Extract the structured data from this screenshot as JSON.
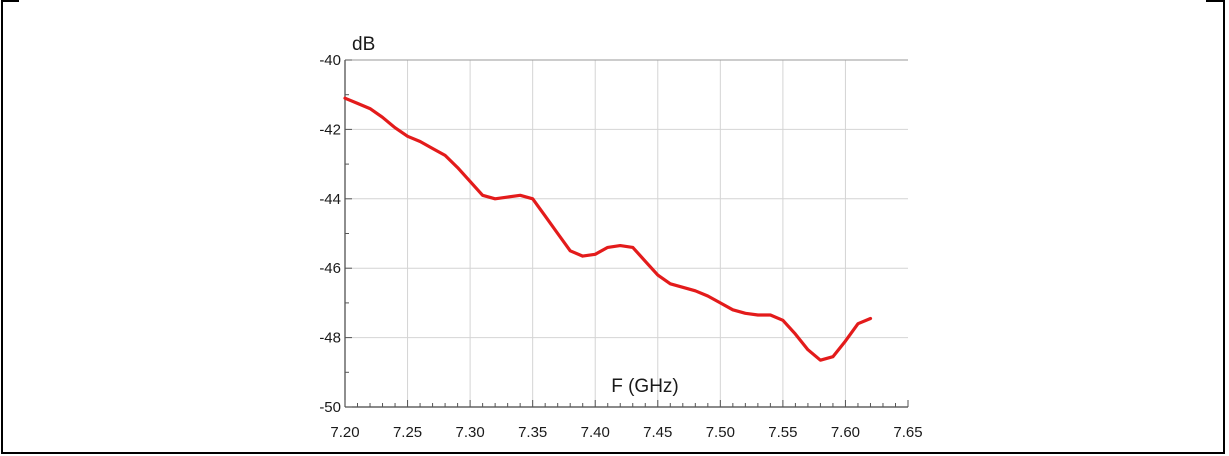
{
  "chart_data": {
    "type": "line",
    "title": "",
    "xlabel": "F (GHz)",
    "ylabel": "dB",
    "xlim": [
      7.2,
      7.65
    ],
    "ylim": [
      -50,
      -40
    ],
    "grid": true,
    "x_ticks": [
      "7.20",
      "7.25",
      "7.30",
      "7.35",
      "7.40",
      "7.45",
      "7.50",
      "7.55",
      "7.60",
      "7.65"
    ],
    "y_ticks": [
      "-40",
      "-42",
      "-44",
      "-46",
      "-48",
      "-50"
    ],
    "series": [
      {
        "color": "#e31b1b",
        "x": [
          7.2,
          7.21,
          7.22,
          7.23,
          7.24,
          7.25,
          7.26,
          7.27,
          7.28,
          7.29,
          7.3,
          7.31,
          7.32,
          7.33,
          7.34,
          7.35,
          7.36,
          7.37,
          7.38,
          7.39,
          7.4,
          7.41,
          7.42,
          7.43,
          7.44,
          7.45,
          7.46,
          7.47,
          7.48,
          7.49,
          7.5,
          7.51,
          7.52,
          7.53,
          7.54,
          7.55,
          7.56,
          7.57,
          7.58,
          7.59,
          7.6,
          7.61,
          7.62
        ],
        "y": [
          -41.1,
          -41.25,
          -41.4,
          -41.65,
          -41.95,
          -42.2,
          -42.35,
          -42.55,
          -42.75,
          -43.1,
          -43.5,
          -43.9,
          -44.0,
          -43.95,
          -43.9,
          -44.0,
          -44.5,
          -45.0,
          -45.5,
          -45.65,
          -45.6,
          -45.4,
          -45.35,
          -45.4,
          -45.8,
          -46.2,
          -46.45,
          -46.55,
          -46.65,
          -46.8,
          -47.0,
          -47.2,
          -47.3,
          -47.35,
          -47.35,
          -47.5,
          -47.9,
          -48.35,
          -48.65,
          -48.55,
          -48.1,
          -47.6,
          -47.45
        ]
      }
    ]
  }
}
